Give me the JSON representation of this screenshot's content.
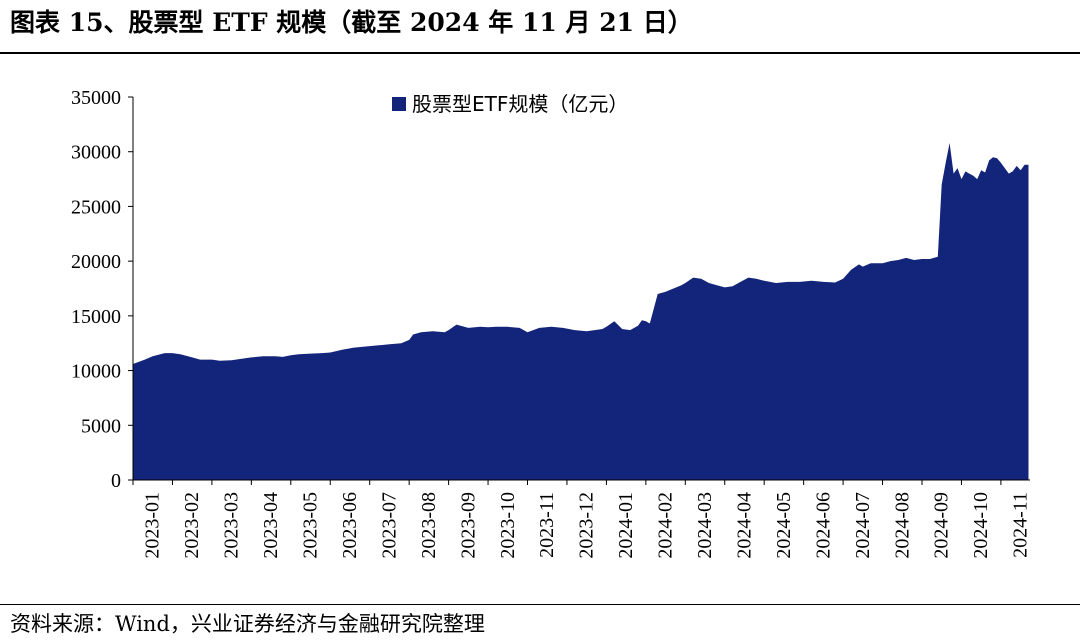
{
  "header": {
    "title": "图表 15、股票型 ETF 规模（截至 2024 年 11 月 21 日）"
  },
  "footer": {
    "source": "资料来源：Wind，兴业证券经济与金融研究院整理"
  },
  "chart_data": {
    "type": "area",
    "title": "",
    "legend": [
      "股票型ETF规模（亿元）"
    ],
    "legend_position": "top-center",
    "color": "#13257a",
    "xlabel": "",
    "ylabel": "",
    "ylim": [
      0,
      35000
    ],
    "yticks": [
      0,
      5000,
      10000,
      15000,
      20000,
      25000,
      30000,
      35000
    ],
    "xtick_labels": [
      "2023-01",
      "2023-02",
      "2023-03",
      "2023-04",
      "2023-05",
      "2023-06",
      "2023-07",
      "2023-08",
      "2023-09",
      "2023-10",
      "2023-11",
      "2023-12",
      "2024-01",
      "2024-02",
      "2024-03",
      "2024-04",
      "2024-05",
      "2024-06",
      "2024-07",
      "2024-08",
      "2024-09",
      "2024-10",
      "2024-11"
    ],
    "series": [
      {
        "name": "股票型ETF规模（亿元）",
        "x_months": [
          0,
          0.3,
          0.5,
          0.8,
          1.0,
          1.2,
          1.5,
          1.7,
          2.0,
          2.2,
          2.5,
          2.8,
          3.0,
          3.3,
          3.6,
          3.8,
          4.0,
          4.2,
          4.5,
          4.8,
          5.0,
          5.3,
          5.6,
          5.9,
          6.2,
          6.5,
          6.8,
          7.0,
          7.1,
          7.3,
          7.6,
          7.9,
          8.0,
          8.2,
          8.5,
          8.8,
          9.0,
          9.2,
          9.5,
          9.8,
          10.0,
          10.3,
          10.6,
          10.9,
          11.2,
          11.5,
          11.7,
          11.9,
          12.0,
          12.2,
          12.4,
          12.6,
          12.8,
          12.9,
          13.0,
          13.1,
          13.3,
          13.5,
          13.7,
          13.9,
          14.0,
          14.2,
          14.4,
          14.6,
          14.8,
          15.0,
          15.2,
          15.4,
          15.6,
          15.8,
          16.0,
          16.3,
          16.6,
          16.9,
          17.2,
          17.5,
          17.8,
          18.0,
          18.2,
          18.4,
          18.5,
          18.7,
          19.0,
          19.2,
          19.4,
          19.6,
          19.8,
          20.0,
          20.2,
          20.4,
          20.5,
          20.6,
          20.7,
          20.8,
          20.9,
          20.95,
          21.0,
          21.1,
          21.2,
          21.3,
          21.4,
          21.5,
          21.6,
          21.7,
          21.8,
          21.9,
          22.0,
          22.1,
          22.2,
          22.3,
          22.4,
          22.5,
          22.6,
          22.7
        ],
        "values": [
          10600,
          11000,
          11300,
          11600,
          11600,
          11500,
          11200,
          11000,
          11000,
          10900,
          10950,
          11100,
          11200,
          11300,
          11300,
          11250,
          11400,
          11500,
          11550,
          11600,
          11650,
          11900,
          12100,
          12200,
          12300,
          12400,
          12500,
          12800,
          13300,
          13500,
          13600,
          13500,
          13700,
          14200,
          13900,
          14000,
          13950,
          14000,
          14000,
          13900,
          13500,
          13900,
          14000,
          13900,
          13700,
          13600,
          13700,
          13800,
          14000,
          14500,
          13800,
          13700,
          14100,
          14600,
          14500,
          14300,
          17000,
          17200,
          17500,
          17800,
          18000,
          18500,
          18400,
          18000,
          17800,
          17600,
          17700,
          18100,
          18500,
          18400,
          18200,
          18000,
          18100,
          18100,
          18200,
          18100,
          18050,
          18400,
          19200,
          19700,
          19500,
          19800,
          19800,
          20000,
          20100,
          20300,
          20100,
          20200,
          20200,
          20400,
          27000,
          29000,
          30800,
          28000,
          28500,
          28000,
          27500,
          28200,
          28000,
          27800,
          27500,
          28300,
          28100,
          29200,
          29500,
          29400,
          29000,
          28500,
          28000,
          28200,
          28700,
          28300,
          28800,
          28800
        ]
      }
    ]
  }
}
